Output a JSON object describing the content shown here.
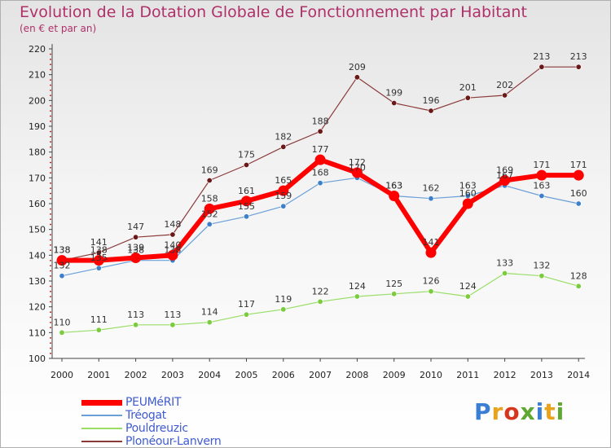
{
  "title": "Evolution de la Dotation Globale de Fonctionnement par Habitant",
  "subtitle": "(en € et par an)",
  "logo": {
    "text": "Proxiti"
  },
  "chart_data": {
    "type": "line",
    "x": [
      2000,
      2001,
      2002,
      2003,
      2004,
      2005,
      2006,
      2007,
      2008,
      2009,
      2010,
      2011,
      2012,
      2013,
      2014
    ],
    "ylim": [
      100,
      220
    ],
    "yticks": [
      100,
      110,
      120,
      130,
      140,
      150,
      160,
      170,
      180,
      190,
      200,
      210,
      220
    ],
    "grid": false,
    "legend_position": "bottom-left",
    "series": [
      {
        "name": "PEUMéRIT",
        "color": "#ff0000",
        "marker": "#ff0000",
        "values": [
          138,
          138,
          139,
          140,
          158,
          161,
          165,
          177,
          172,
          163,
          141,
          160,
          169,
          171,
          171
        ]
      },
      {
        "name": "Tréogat",
        "color": "#6a9fd8",
        "marker": "#3d7fc8",
        "values": [
          132,
          135,
          138,
          138,
          152,
          155,
          159,
          168,
          170,
          163,
          162,
          163,
          167,
          163,
          160
        ]
      },
      {
        "name": "Pouldreuzic",
        "color": "#99dd66",
        "marker": "#7acc3e",
        "values": [
          110,
          111,
          113,
          113,
          114,
          117,
          119,
          122,
          124,
          125,
          126,
          124,
          133,
          132,
          128
        ]
      },
      {
        "name": "Plonéour-Lanvern",
        "color": "#8b3a3a",
        "marker": "#6b1818",
        "values": [
          138,
          141,
          147,
          148,
          169,
          175,
          182,
          188,
          209,
          199,
          196,
          201,
          202,
          213,
          213
        ]
      }
    ]
  }
}
